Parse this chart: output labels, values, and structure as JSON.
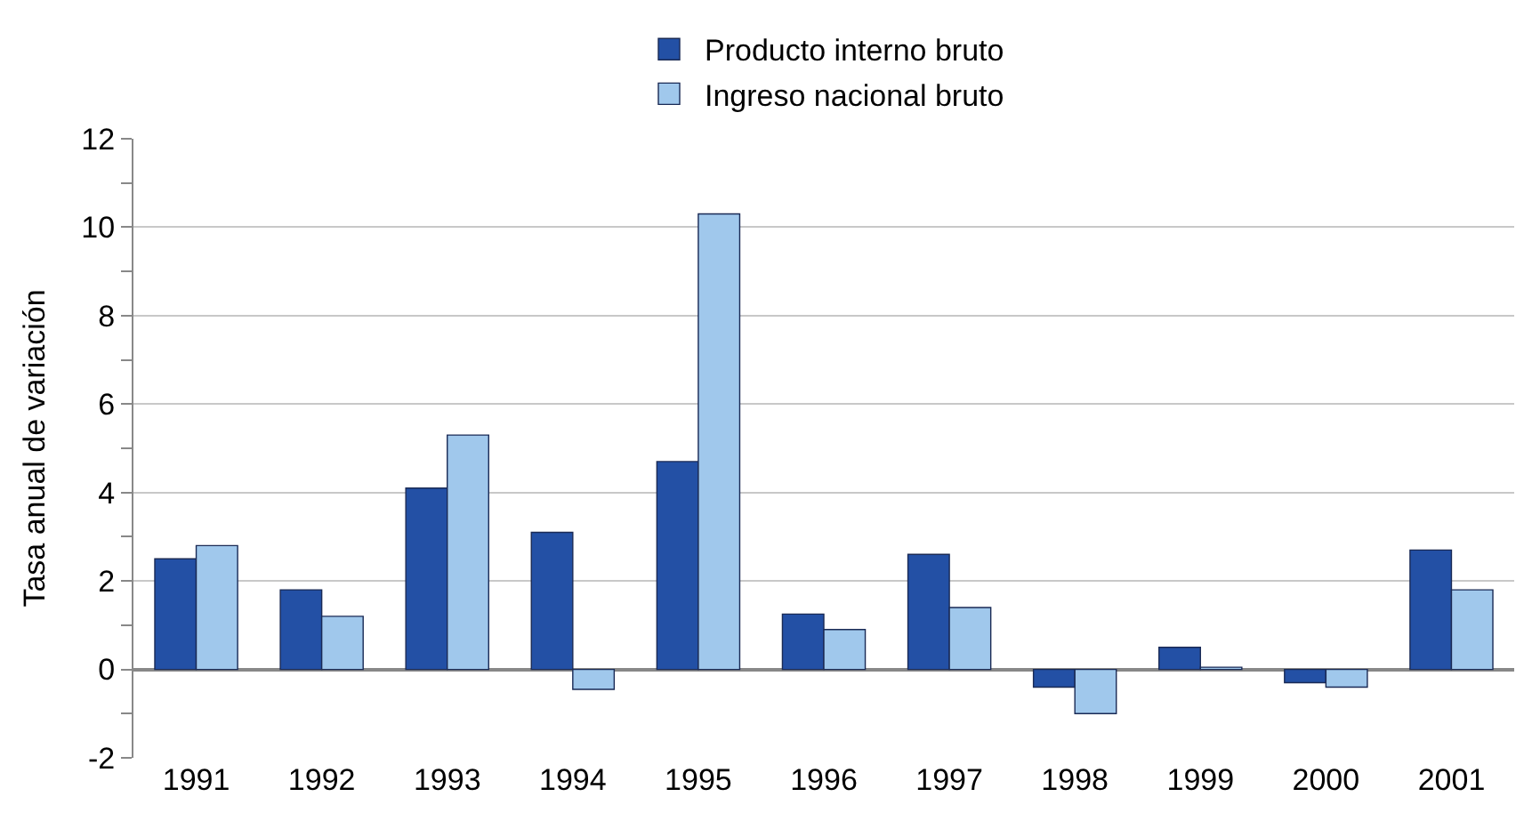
{
  "chart_data": {
    "type": "bar",
    "ylabel": "Tasa anual de variación",
    "categories": [
      "1991",
      "1992",
      "1993",
      "1994",
      "1995",
      "1996",
      "1997",
      "1998",
      "1999",
      "2000",
      "2001"
    ],
    "series": [
      {
        "name": "Producto interno bruto",
        "color": "#2350a5",
        "values": [
          2.5,
          1.8,
          4.1,
          3.1,
          4.7,
          1.25,
          2.6,
          -0.4,
          0.5,
          -0.3,
          2.7
        ]
      },
      {
        "name": "Ingreso nacional bruto",
        "color": "#a0c8ec",
        "values": [
          2.8,
          1.2,
          5.3,
          -0.45,
          10.3,
          0.9,
          1.4,
          -1.0,
          0.05,
          -0.4,
          1.8
        ]
      }
    ],
    "ylim": [
      -2,
      12
    ],
    "yticks": [
      -2,
      {
        "value": -1,
        "label": null
      },
      0,
      {
        "value": 1,
        "label": null
      },
      2,
      {
        "value": 3,
        "label": null
      },
      4,
      {
        "value": 5,
        "label": null
      },
      6,
      {
        "value": 7,
        "label": null
      },
      8,
      {
        "value": 9,
        "label": null
      },
      10,
      {
        "value": 11,
        "label": null
      },
      12
    ],
    "grid": "y",
    "legend": "top"
  }
}
